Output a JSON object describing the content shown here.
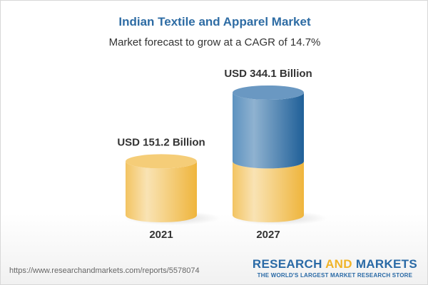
{
  "chart_data": {
    "type": "bar",
    "title": "Indian Textile and Apparel Market",
    "subtitle": "Market forecast to grow at a CAGR of 14.7%",
    "categories": [
      "2021",
      "2027"
    ],
    "values": [
      151.2,
      344.1
    ],
    "data_labels": [
      "USD 151.2 Billion",
      "USD 344.1 Billion"
    ],
    "unit": "USD Billion",
    "style": "3d-cylinder",
    "colors": {
      "base": "#f2c35a",
      "growth": "#3a78ae"
    },
    "grid": false
  },
  "footer": {
    "url": "https://www.researchandmarkets.com/reports/5578074",
    "brand_part1": "RESEARCH ",
    "brand_part2": "AND",
    "brand_part3": " MARKETS",
    "tagline": "THE WORLD'S LARGEST MARKET RESEARCH STORE"
  }
}
